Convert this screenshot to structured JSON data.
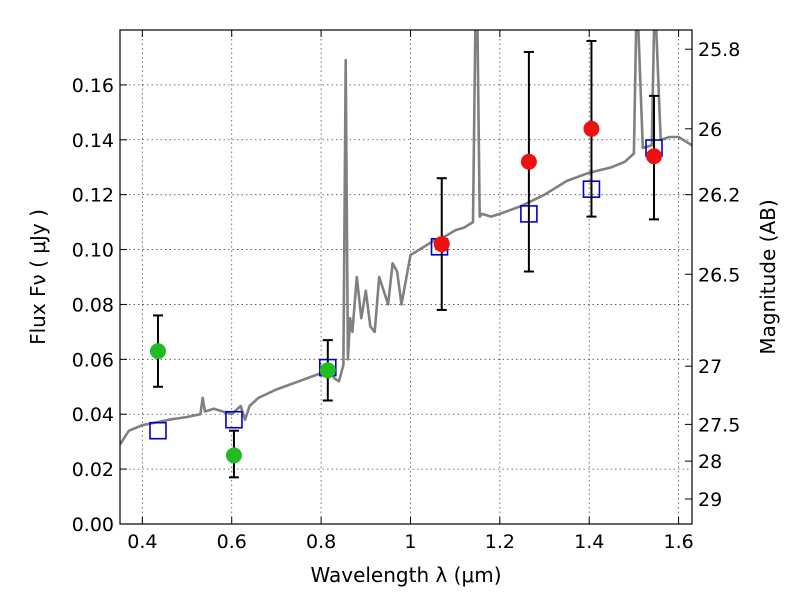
{
  "chart_data": {
    "type": "scatter",
    "title": "",
    "xlabel": "Wavelength  λ (μm)",
    "ylabel": "Flux  Fν  ( μJy )",
    "y2label": "Magnitude (AB)",
    "xlim": [
      0.35,
      1.63
    ],
    "ylim": [
      0.0,
      0.18
    ],
    "grid": true,
    "x_ticks": [
      0.4,
      0.6,
      0.8,
      1.0,
      1.2,
      1.4,
      1.6
    ],
    "x_tick_labels": [
      "0.4",
      "0.6",
      "0.8",
      "1",
      "1.2",
      "1.4",
      "1.6"
    ],
    "y_ticks": [
      0.0,
      0.02,
      0.04,
      0.06,
      0.08,
      0.1,
      0.12,
      0.14,
      0.16
    ],
    "y_tick_labels": [
      "0.00",
      "0.02",
      "0.04",
      "0.06",
      "0.08",
      "0.10",
      "0.12",
      "0.14",
      "0.16"
    ],
    "y2_ticks": [
      {
        "label": "25.8",
        "flux": 0.173
      },
      {
        "label": "26",
        "flux": 0.144
      },
      {
        "label": "26.2",
        "flux": 0.12
      },
      {
        "label": "26.5",
        "flux": 0.091
      },
      {
        "label": "27",
        "flux": 0.0575
      },
      {
        "label": "27.5",
        "flux": 0.0363
      },
      {
        "label": "28",
        "flux": 0.0229
      },
      {
        "label": "29",
        "flux": 0.0091
      }
    ],
    "series": [
      {
        "kind": "line",
        "color": "#808080",
        "x": [
          0.35,
          0.37,
          0.4,
          0.43,
          0.46,
          0.5,
          0.53,
          0.535,
          0.54,
          0.56,
          0.6,
          0.62,
          0.63,
          0.64,
          0.66,
          0.7,
          0.75,
          0.8,
          0.82,
          0.83,
          0.84,
          0.85,
          0.855,
          0.86,
          0.865,
          0.87,
          0.88,
          0.89,
          0.9,
          0.91,
          0.92,
          0.93,
          0.95,
          0.96,
          0.97,
          0.98,
          1.0,
          1.02,
          1.05,
          1.08,
          1.1,
          1.12,
          1.14,
          1.145,
          1.15,
          1.155,
          1.16,
          1.18,
          1.2,
          1.25,
          1.3,
          1.35,
          1.4,
          1.45,
          1.48,
          1.5,
          1.505,
          1.51,
          1.52,
          1.54,
          1.545,
          1.55,
          1.56,
          1.58,
          1.6,
          1.63
        ],
        "y": [
          0.029,
          0.034,
          0.036,
          0.037,
          0.038,
          0.039,
          0.04,
          0.046,
          0.041,
          0.042,
          0.04,
          0.043,
          0.038,
          0.043,
          0.046,
          0.049,
          0.052,
          0.055,
          0.056,
          0.053,
          0.052,
          0.058,
          0.169,
          0.06,
          0.075,
          0.07,
          0.09,
          0.075,
          0.085,
          0.072,
          0.07,
          0.09,
          0.08,
          0.095,
          0.092,
          0.08,
          0.098,
          0.1,
          0.103,
          0.105,
          0.107,
          0.108,
          0.11,
          0.18,
          0.18,
          0.112,
          0.113,
          0.112,
          0.113,
          0.116,
          0.12,
          0.125,
          0.128,
          0.13,
          0.132,
          0.135,
          0.18,
          0.18,
          0.137,
          0.138,
          0.18,
          0.18,
          0.14,
          0.141,
          0.141,
          0.138
        ]
      },
      {
        "kind": "markers-square",
        "color": "#0000cc",
        "x": [
          0.435,
          0.605,
          0.815,
          1.065,
          1.265,
          1.405,
          1.545
        ],
        "y": [
          0.034,
          0.038,
          0.057,
          0.101,
          0.113,
          0.122,
          0.137
        ]
      },
      {
        "kind": "markers-circle-errorbar",
        "color": "#22bb22",
        "x": [
          0.435,
          0.605,
          0.815
        ],
        "y": [
          0.063,
          0.025,
          0.056
        ],
        "yerr_low": [
          0.05,
          0.017,
          0.045
        ],
        "yerr_high": [
          0.076,
          0.034,
          0.067
        ]
      },
      {
        "kind": "markers-circle-errorbar",
        "color": "#ee1111",
        "x": [
          1.07,
          1.265,
          1.405,
          1.545
        ],
        "y": [
          0.102,
          0.132,
          0.144,
          0.134
        ],
        "yerr_low": [
          0.078,
          0.092,
          0.112,
          0.111
        ],
        "yerr_high": [
          0.126,
          0.172,
          0.176,
          0.156
        ]
      }
    ]
  }
}
